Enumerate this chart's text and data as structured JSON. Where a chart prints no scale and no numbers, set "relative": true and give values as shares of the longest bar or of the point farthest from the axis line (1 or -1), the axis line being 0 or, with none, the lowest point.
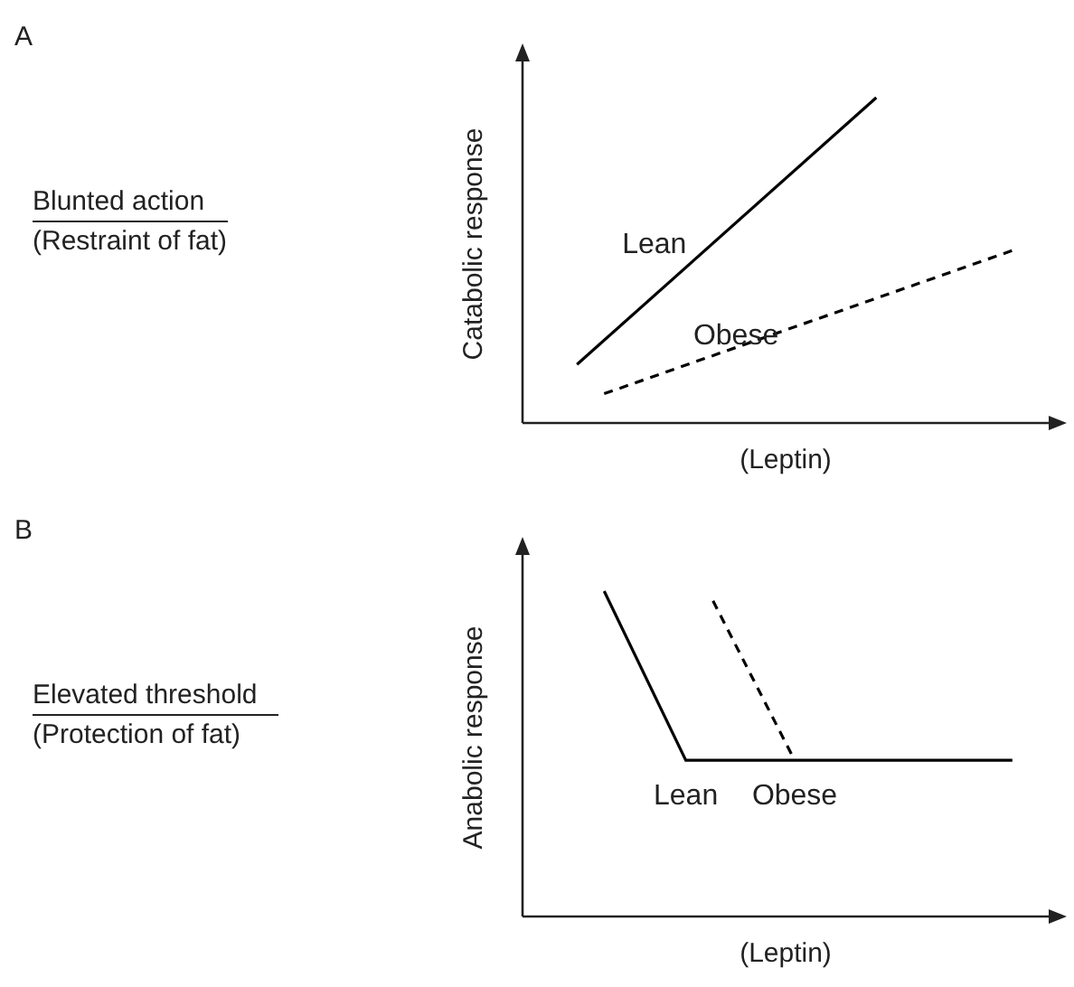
{
  "chart_data": [
    {
      "type": "line",
      "annotations": [
        "A",
        "Blunted action",
        "(Restraint of fat)"
      ],
      "xlabel": "(Leptin)",
      "ylabel": "Catabolic response",
      "relative": true,
      "marker": "none",
      "categories": [
        null,
        null,
        null,
        null,
        null,
        null,
        null,
        null,
        null,
        null,
        null,
        null,
        null,
        null,
        null,
        null,
        null,
        null,
        null,
        null,
        null
      ],
      "series": [
        {
          "name": "Lean",
          "color": "#000000",
          "line_style": "solid",
          "values": [
            null,
            null,
            0.18,
            null,
            null,
            null,
            null,
            null,
            null,
            null,
            null,
            null,
            null,
            1,
            null,
            null,
            null,
            null,
            null,
            null,
            null
          ]
        },
        {
          "name": "Obese",
          "color": "#000000",
          "line_style": "dashed",
          "values": [
            null,
            null,
            null,
            0.09,
            null,
            null,
            null,
            null,
            null,
            null,
            null,
            null,
            null,
            null,
            null,
            null,
            null,
            null,
            0.53,
            null,
            null
          ]
        }
      ]
    },
    {
      "type": "line",
      "annotations": [
        "B",
        "Elevated threshold",
        "(Protection of fat)"
      ],
      "xlabel": "(Leptin)",
      "ylabel": "Anabolic response",
      "relative": true,
      "marker": "none",
      "categories": [
        null,
        null,
        null,
        null,
        null,
        null,
        null,
        null,
        null,
        null,
        null,
        null,
        null,
        null,
        null,
        null,
        null,
        null,
        null,
        null,
        null
      ],
      "series": [
        {
          "name": "Lean",
          "color": "#000000",
          "line_style": "solid",
          "values": [
            null,
            null,
            null,
            1,
            null,
            null,
            0.48,
            null,
            null,
            null,
            null,
            null,
            null,
            null,
            null,
            null,
            null,
            null,
            0.48,
            null,
            null
          ]
        },
        {
          "name": "Obese",
          "color": "#000000",
          "line_style": "dashed",
          "values": [
            null,
            null,
            null,
            null,
            null,
            null,
            null,
            0.97,
            null,
            null,
            0.48,
            null,
            null,
            null,
            null,
            null,
            null,
            null,
            null,
            null,
            null
          ]
        }
      ]
    }
  ]
}
